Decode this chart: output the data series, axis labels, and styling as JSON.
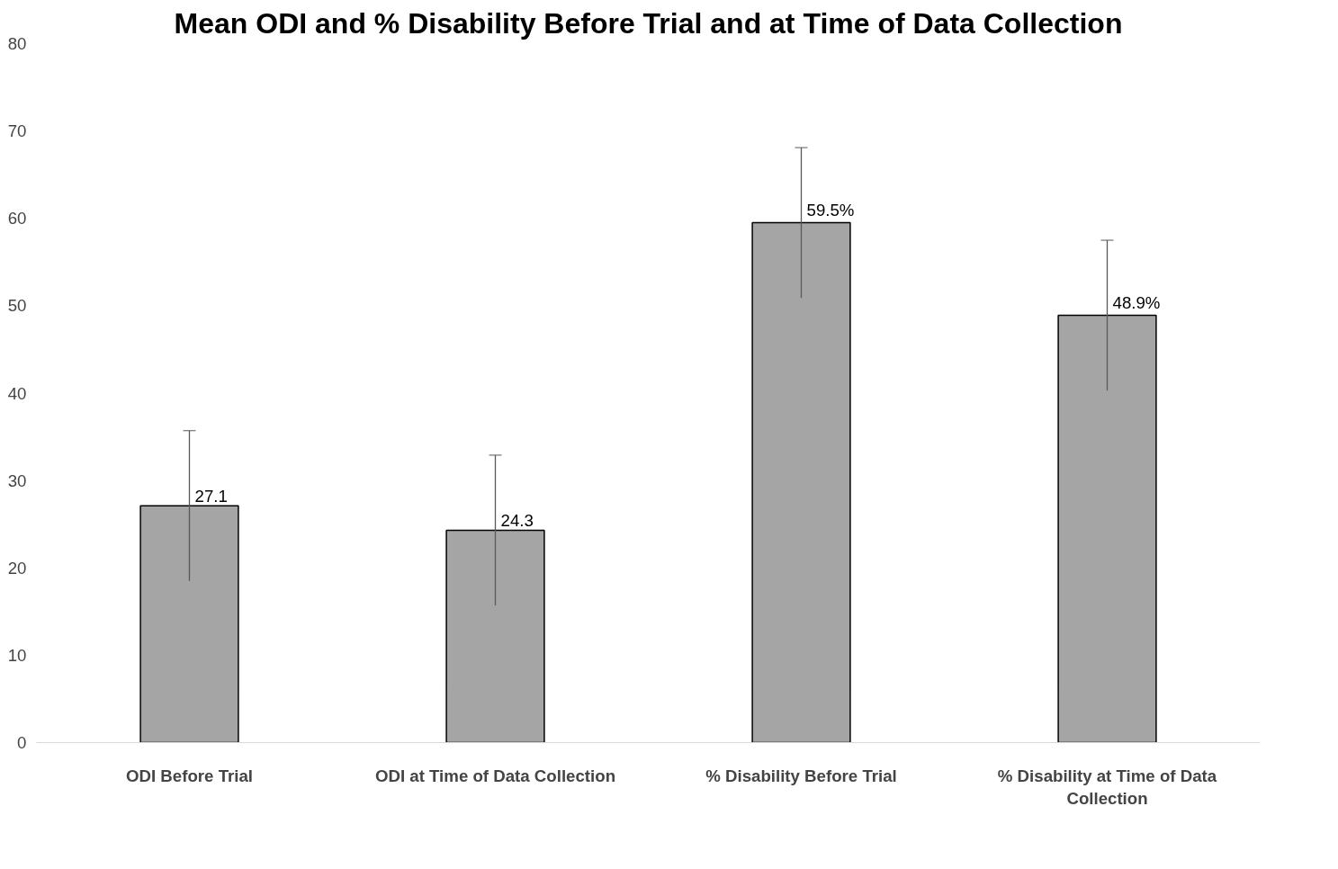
{
  "chart_data": {
    "type": "bar",
    "title": "Mean ODI and % Disability Before Trial and at Time of Data Collection",
    "categories": [
      "ODI Before Trial",
      "ODI at Time of Data Collection",
      "% Disability Before Trial",
      "% Disability at Time of Data Collection"
    ],
    "values": [
      27.1,
      24.3,
      59.5,
      48.9
    ],
    "value_labels": [
      "27.1",
      "24.3",
      "59.5%",
      "48.9%"
    ],
    "errors": [
      8.6,
      8.6,
      8.6,
      8.6
    ],
    "color": "#a5a5a5",
    "ylim": [
      0,
      80
    ],
    "yticks": [
      0,
      10,
      20,
      30,
      40,
      50,
      60,
      70,
      80
    ],
    "grid": false
  }
}
